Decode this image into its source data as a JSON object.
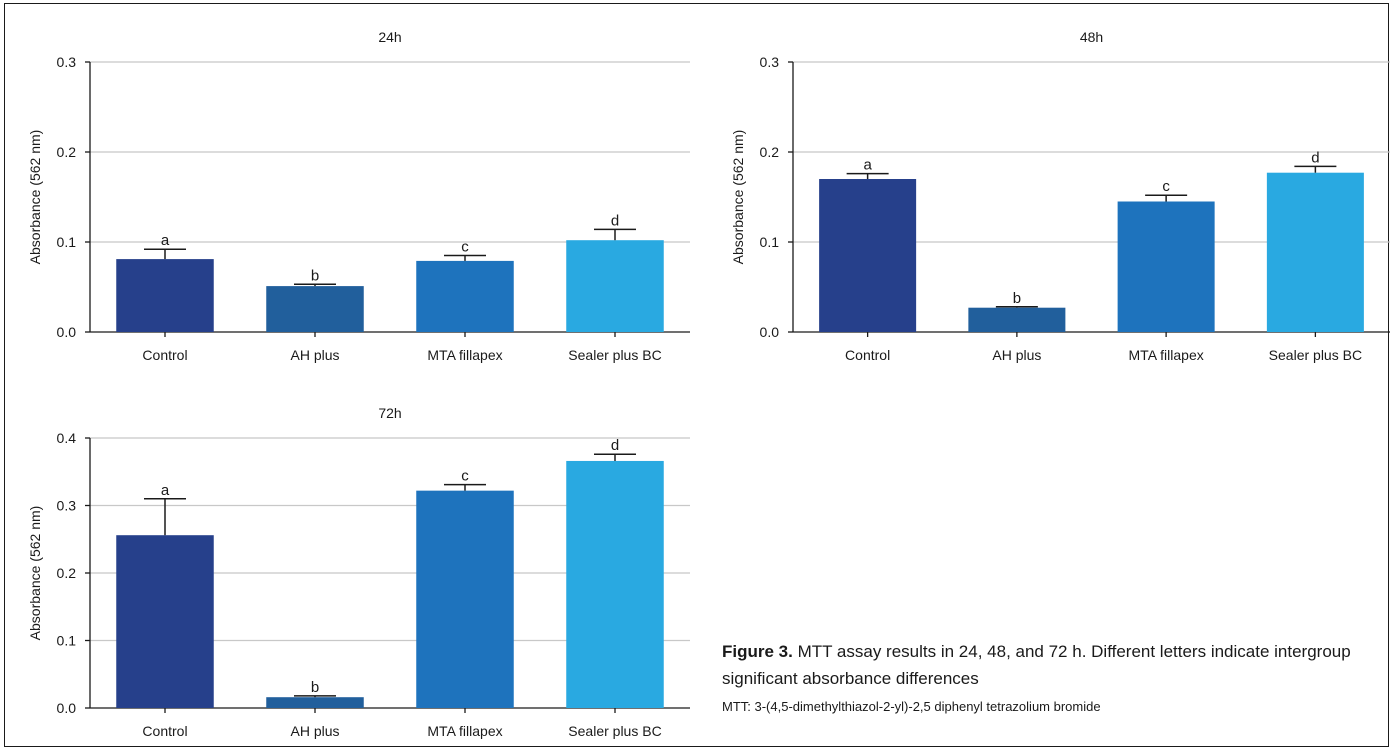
{
  "chart_data": [
    {
      "type": "bar",
      "title": "24h",
      "ylabel": "Absorbance (562 nm)",
      "xlabel": "",
      "categories": [
        "Control",
        "AH plus",
        "MTA fillapex",
        "Sealer plus BC"
      ],
      "values": [
        0.081,
        0.051,
        0.079,
        0.102
      ],
      "error": [
        0.011,
        0.002,
        0.006,
        0.012
      ],
      "letters": [
        "a",
        "b",
        "c",
        "d"
      ],
      "ylim": [
        0,
        0.3
      ],
      "yticks": [
        "0.0",
        "0.1",
        "0.2",
        "0.3"
      ],
      "grid": true,
      "colors": [
        "#26408b",
        "#215f9c",
        "#1e73bd",
        "#29a9e1"
      ]
    },
    {
      "type": "bar",
      "title": "48h",
      "ylabel": "Absorbance (562 nm)",
      "xlabel": "",
      "categories": [
        "Control",
        "AH plus",
        "MTA fillapex",
        "Sealer plus BC"
      ],
      "values": [
        0.17,
        0.027,
        0.145,
        0.177
      ],
      "error": [
        0.006,
        0.001,
        0.007,
        0.007
      ],
      "letters": [
        "a",
        "b",
        "c",
        "d"
      ],
      "ylim": [
        0,
        0.3
      ],
      "yticks": [
        "0.0",
        "0.1",
        "0.2",
        "0.3"
      ],
      "grid": true,
      "colors": [
        "#26408b",
        "#215f9c",
        "#1e73bd",
        "#29a9e1"
      ]
    },
    {
      "type": "bar",
      "title": "72h",
      "ylabel": "Absorbance (562 nm)",
      "xlabel": "",
      "categories": [
        "Control",
        "AH plus",
        "MTA fillapex",
        "Sealer plus BC"
      ],
      "values": [
        0.256,
        0.016,
        0.322,
        0.366
      ],
      "error": [
        0.054,
        0.002,
        0.009,
        0.01
      ],
      "letters": [
        "a",
        "b",
        "c",
        "d"
      ],
      "ylim": [
        0,
        0.4
      ],
      "yticks": [
        "0.0",
        "0.1",
        "0.2",
        "0.3",
        "0.4"
      ],
      "grid": true,
      "colors": [
        "#26408b",
        "#215f9c",
        "#1e73bd",
        "#29a9e1"
      ]
    }
  ],
  "caption": {
    "label": "Figure 3.",
    "text": " MTT assay results in 24, 48, and 72 h. Different letters indicate intergroup significant absorbance differences",
    "note": "MTT: 3-(4,5-dimethylthiazol-2-yl)-2,5 diphenyl tetrazolium bromide"
  }
}
